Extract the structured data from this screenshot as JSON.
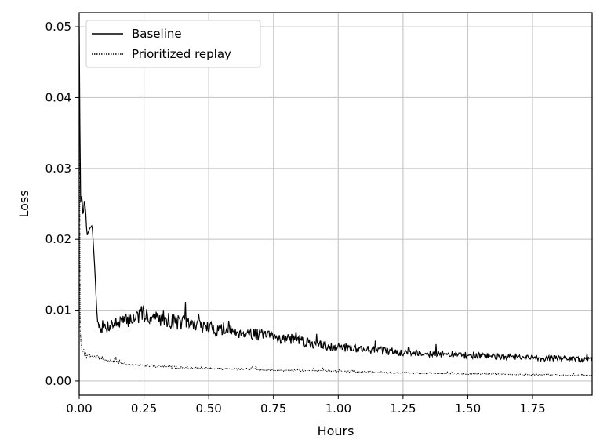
{
  "chart_data": {
    "type": "line",
    "title": "",
    "xlabel": "Hours",
    "ylabel": "Loss",
    "xlim": [
      0,
      1.98
    ],
    "ylim": [
      -0.002,
      0.052
    ],
    "grid": true,
    "legend_position": "top-left",
    "x_ticks": [
      0.0,
      0.25,
      0.5,
      0.75,
      1.0,
      1.25,
      1.5,
      1.75
    ],
    "x_tick_labels": [
      "0.00",
      "0.25",
      "0.50",
      "0.75",
      "1.00",
      "1.25",
      "1.50",
      "1.75"
    ],
    "y_ticks": [
      0.0,
      0.01,
      0.02,
      0.03,
      0.04,
      0.05
    ],
    "y_tick_labels": [
      "0.00",
      "0.01",
      "0.02",
      "0.03",
      "0.04",
      "0.05"
    ],
    "series": [
      {
        "name": "Baseline",
        "style": "solid",
        "color": "#000000",
        "x": [
          0.0,
          0.005,
          0.01,
          0.015,
          0.02,
          0.025,
          0.03,
          0.04,
          0.05,
          0.06,
          0.065,
          0.07,
          0.08,
          0.1,
          0.12,
          0.15,
          0.18,
          0.2,
          0.23,
          0.25,
          0.28,
          0.3,
          0.33,
          0.35,
          0.4,
          0.45,
          0.5,
          0.55,
          0.6,
          0.65,
          0.7,
          0.75,
          0.8,
          0.85,
          0.9,
          0.95,
          1.0,
          1.05,
          1.1,
          1.15,
          1.2,
          1.25,
          1.3,
          1.35,
          1.4,
          1.45,
          1.5,
          1.55,
          1.6,
          1.65,
          1.7,
          1.75,
          1.8,
          1.85,
          1.9,
          1.95,
          1.98
        ],
        "y": [
          0.05,
          0.025,
          0.0265,
          0.023,
          0.0255,
          0.024,
          0.0205,
          0.0215,
          0.022,
          0.016,
          0.012,
          0.0085,
          0.0078,
          0.0075,
          0.008,
          0.0082,
          0.0085,
          0.0088,
          0.0092,
          0.0095,
          0.009,
          0.0088,
          0.009,
          0.0085,
          0.0082,
          0.008,
          0.0075,
          0.0072,
          0.007,
          0.0068,
          0.0065,
          0.0062,
          0.006,
          0.0058,
          0.0052,
          0.005,
          0.0048,
          0.0047,
          0.0045,
          0.0044,
          0.0042,
          0.004,
          0.004,
          0.0039,
          0.0038,
          0.0037,
          0.0036,
          0.0036,
          0.0035,
          0.0034,
          0.0033,
          0.0033,
          0.0032,
          0.0032,
          0.0031,
          0.003,
          0.0031
        ]
      },
      {
        "name": "Prioritized replay",
        "style": "dotted",
        "color": "#000000",
        "x": [
          0.0,
          0.002,
          0.005,
          0.01,
          0.015,
          0.02,
          0.03,
          0.05,
          0.1,
          0.15,
          0.2,
          0.25,
          0.3,
          0.4,
          0.5,
          0.6,
          0.7,
          0.8,
          0.9,
          1.0,
          1.1,
          1.2,
          1.3,
          1.4,
          1.5,
          1.6,
          1.7,
          1.8,
          1.9,
          1.98
        ],
        "y": [
          0.05,
          0.009,
          0.006,
          0.0045,
          0.004,
          0.0038,
          0.0036,
          0.0035,
          0.003,
          0.0026,
          0.0023,
          0.0022,
          0.0021,
          0.0019,
          0.0018,
          0.0017,
          0.0016,
          0.0015,
          0.0015,
          0.0014,
          0.0013,
          0.0012,
          0.0011,
          0.0011,
          0.001,
          0.001,
          0.0009,
          0.0009,
          0.0008,
          0.0008
        ]
      }
    ]
  }
}
